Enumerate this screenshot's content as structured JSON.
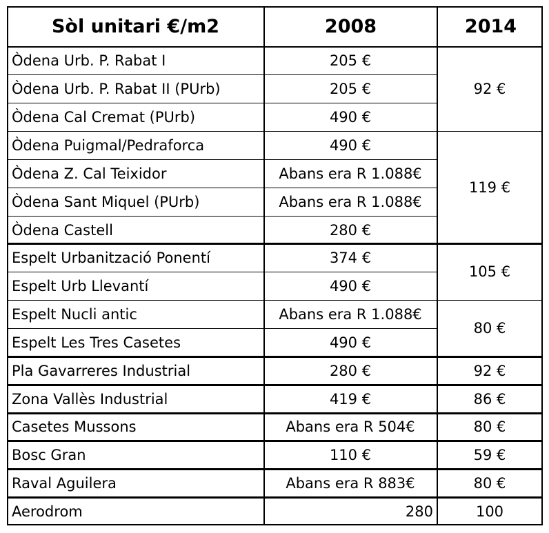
{
  "header": {
    "col1": "Sòl unitari €/m2",
    "col2": "2008",
    "col3": "2014"
  },
  "rows": [
    {
      "name": "Òdena Urb. P. Rabat I",
      "v2008": "205 €"
    },
    {
      "name": "Òdena Urb. P. Rabat II (PUrb)",
      "v2008": "205 €"
    },
    {
      "name": "Òdena Cal Cremat (PUrb)",
      "v2008": "490 €"
    },
    {
      "name": "Òdena Puigmal/Pedraforca",
      "v2008": "490 €"
    },
    {
      "name": "Òdena Z. Cal Teixidor",
      "v2008": "Abans era R 1.088€"
    },
    {
      "name": "Òdena Sant Miquel (PUrb)",
      "v2008": "Abans era R 1.088€"
    },
    {
      "name": "Òdena Castell",
      "v2008": "280 €"
    },
    {
      "name": "Espelt Urbanització Ponentí",
      "v2008": "374 €"
    },
    {
      "name": "Espelt Urb Llevantí",
      "v2008": "490 €"
    },
    {
      "name": "Espelt Nucli antic",
      "v2008": "Abans era R 1.088€"
    },
    {
      "name": "Espelt Les Tres Casetes",
      "v2008": "490 €"
    },
    {
      "name": "Pla Gavarreres Industrial",
      "v2008": "280 €",
      "v2014": "92 €"
    },
    {
      "name": "Zona Vallès Industrial",
      "v2008": "419 €",
      "v2014": "86 €"
    },
    {
      "name": "Casetes Mussons",
      "v2008": "Abans era R 504€",
      "v2014": "80 €"
    },
    {
      "name": "Bosc Gran",
      "v2008": "110 €",
      "v2014": "59 €"
    },
    {
      "name": "Raval Aguilera",
      "v2008": "Abans era R 883€",
      "v2014": "80 €"
    },
    {
      "name": "Aerodrom",
      "v2008": "280",
      "v2014": "100"
    }
  ],
  "groups2014": [
    {
      "value": "92 €",
      "from": 0,
      "to": 2
    },
    {
      "value": "119 €",
      "from": 3,
      "to": 6
    },
    {
      "value": "105 €",
      "from": 7,
      "to": 8
    },
    {
      "value": "80 €",
      "from": 9,
      "to": 10
    }
  ]
}
